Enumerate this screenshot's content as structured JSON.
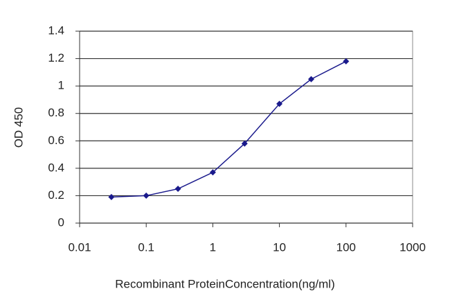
{
  "chart_data": {
    "type": "line",
    "x_label": "Recombinant ProteinConcentration(ng/ml)",
    "y_label": "OD 450",
    "x": [
      0.03,
      0.1,
      0.3,
      1,
      3,
      10,
      30,
      100
    ],
    "series": [
      {
        "name": "OD 450",
        "color": "#1a1a8c",
        "values": [
          0.19,
          0.2,
          0.25,
          0.37,
          0.58,
          0.87,
          1.05,
          1.18
        ]
      }
    ],
    "xlim": [
      0.01,
      1000
    ],
    "xticks": [
      0.01,
      0.1,
      1,
      10,
      100,
      1000
    ],
    "xscale": "log",
    "ylim": [
      0,
      1.4
    ],
    "yticks": [
      0,
      0.2,
      0.4,
      0.6,
      0.8,
      1,
      1.2,
      1.4
    ],
    "grid": true
  }
}
